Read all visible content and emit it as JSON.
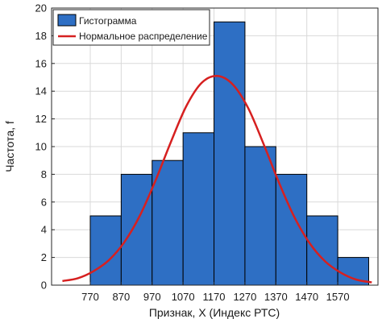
{
  "chart_data": {
    "type": "bar",
    "xlabel": "Признак, X (Индекс РТС)",
    "ylabel": "Частота, f",
    "ylim": [
      0,
      20
    ],
    "yticks": [
      0,
      2,
      4,
      6,
      8,
      10,
      12,
      14,
      16,
      18,
      20
    ],
    "xlim": [
      645,
      1700
    ],
    "xticks": [
      770,
      870,
      970,
      1070,
      1170,
      1270,
      1370,
      1470,
      1570
    ],
    "bin_width": 100,
    "grid": true,
    "legend_position": "top-left",
    "colors": {
      "bar": "#2e6fc4",
      "bar_edge": "#000000",
      "curve": "#d62020",
      "grid": "#d9d9d9"
    },
    "series": [
      {
        "name": "Гистограмма",
        "kind": "histogram",
        "bins": [
          {
            "start": 770,
            "end": 870,
            "value": 5
          },
          {
            "start": 870,
            "end": 970,
            "value": 8
          },
          {
            "start": 970,
            "end": 1070,
            "value": 9
          },
          {
            "start": 1070,
            "end": 1170,
            "value": 11
          },
          {
            "start": 1170,
            "end": 1270,
            "value": 19
          },
          {
            "start": 1270,
            "end": 1370,
            "value": 10
          },
          {
            "start": 1370,
            "end": 1470,
            "value": 8
          },
          {
            "start": 1470,
            "end": 1570,
            "value": 5
          },
          {
            "start": 1570,
            "end": 1670,
            "value": 2
          }
        ]
      },
      {
        "name": "Нормальное распределение",
        "kind": "curve",
        "x": [
          680,
          730,
          780,
          830,
          880,
          930,
          980,
          1030,
          1080,
          1130,
          1180,
          1230,
          1280,
          1330,
          1380,
          1430,
          1480,
          1530,
          1580,
          1630,
          1680
        ],
        "y": [
          0.3,
          0.5,
          1.0,
          1.8,
          3.1,
          5.0,
          7.5,
          10.3,
          12.9,
          14.6,
          15.1,
          14.5,
          12.8,
          10.2,
          7.4,
          4.9,
          3.0,
          1.7,
          0.9,
          0.4,
          0.2
        ]
      }
    ]
  }
}
